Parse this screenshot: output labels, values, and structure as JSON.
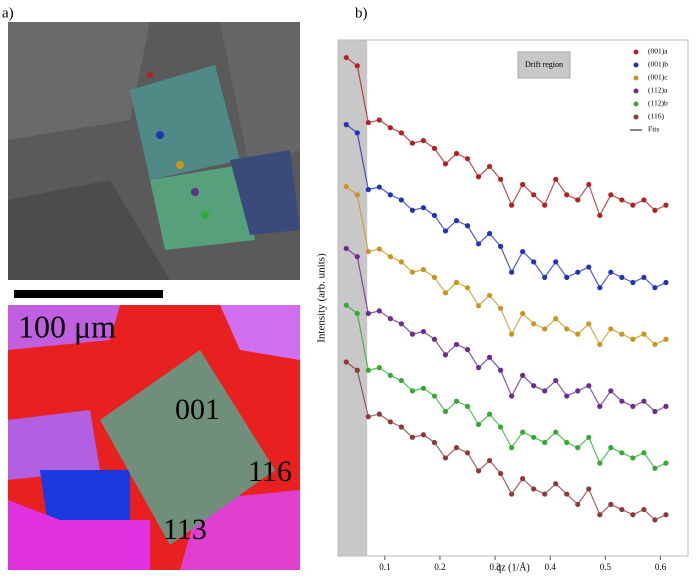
{
  "figure": {
    "panel_a_label": "a)",
    "panel_b_label": "b)",
    "scale_bar_label": "100 μm",
    "map_labels": [
      "001",
      "116",
      "113"
    ]
  },
  "chart_data": {
    "type": "scatter",
    "x_label": "qz (1/Å)",
    "y_label": "Intensity (arb. units)",
    "annotation": "Drift region",
    "shaded_xrange": [
      0.015,
      0.068
    ],
    "xlim": [
      0.015,
      0.65
    ],
    "ylim": [
      0,
      10
    ],
    "xticks": [
      0.1,
      0.2,
      0.3,
      0.4,
      0.5,
      0.6
    ],
    "x": [
      0.03,
      0.05,
      0.07,
      0.09,
      0.11,
      0.13,
      0.15,
      0.17,
      0.19,
      0.21,
      0.23,
      0.25,
      0.27,
      0.29,
      0.31,
      0.33,
      0.35,
      0.37,
      0.39,
      0.41,
      0.43,
      0.45,
      0.47,
      0.49,
      0.51,
      0.53,
      0.55,
      0.57,
      0.59,
      0.61
    ],
    "series": [
      {
        "name": "(001)a",
        "color": "#b22222",
        "values": [
          9.66,
          9.5,
          8.4,
          8.45,
          8.3,
          8.2,
          8.0,
          8.05,
          7.9,
          7.6,
          7.8,
          7.7,
          7.35,
          7.55,
          7.3,
          6.8,
          7.2,
          7.0,
          6.8,
          7.3,
          7.0,
          6.9,
          7.2,
          6.6,
          7.0,
          6.9,
          6.8,
          6.9,
          6.7,
          6.8
        ]
      },
      {
        "name": "(001)b",
        "color": "#2233bb",
        "values": [
          8.36,
          8.2,
          7.1,
          7.15,
          7.0,
          6.9,
          6.7,
          6.75,
          6.6,
          6.3,
          6.5,
          6.4,
          6.05,
          6.25,
          6.0,
          5.5,
          5.9,
          5.7,
          5.4,
          5.7,
          5.4,
          5.5,
          5.6,
          5.2,
          5.5,
          5.4,
          5.3,
          5.4,
          5.2,
          5.3
        ]
      },
      {
        "name": "(001)c",
        "color": "#c8961e",
        "values": [
          7.16,
          7.0,
          5.9,
          5.95,
          5.8,
          5.7,
          5.5,
          5.55,
          5.4,
          5.1,
          5.3,
          5.2,
          4.85,
          5.05,
          4.8,
          4.3,
          4.7,
          4.5,
          4.4,
          4.6,
          4.4,
          4.3,
          4.5,
          4.1,
          4.4,
          4.3,
          4.2,
          4.3,
          4.1,
          4.2
        ]
      },
      {
        "name": "(112)a",
        "color": "#6a2c8e",
        "values": [
          5.96,
          5.8,
          4.7,
          4.75,
          4.6,
          4.5,
          4.3,
          4.35,
          4.2,
          3.9,
          4.1,
          4.0,
          3.65,
          3.85,
          3.6,
          3.1,
          3.5,
          3.3,
          3.2,
          3.4,
          3.1,
          3.2,
          3.3,
          2.9,
          3.2,
          3.0,
          2.9,
          3.0,
          2.8,
          2.9
        ]
      },
      {
        "name": "(112)b",
        "color": "#33aa33",
        "values": [
          4.86,
          4.7,
          3.6,
          3.65,
          3.5,
          3.4,
          3.2,
          3.25,
          3.1,
          2.8,
          3.0,
          2.9,
          2.55,
          2.75,
          2.5,
          2.1,
          2.4,
          2.3,
          2.2,
          2.4,
          2.2,
          2.1,
          2.3,
          1.8,
          2.1,
          2.0,
          1.9,
          2.0,
          1.7,
          1.8
        ]
      },
      {
        "name": "(116)",
        "color": "#8b3a3a",
        "values": [
          3.76,
          3.6,
          2.7,
          2.75,
          2.6,
          2.5,
          2.3,
          2.35,
          2.2,
          1.9,
          2.1,
          2.0,
          1.65,
          1.85,
          1.6,
          1.2,
          1.5,
          1.3,
          1.2,
          1.4,
          1.2,
          1.0,
          1.3,
          0.8,
          1.0,
          0.9,
          0.8,
          0.9,
          0.7,
          0.8
        ]
      }
    ],
    "fit_legend": {
      "name": "Fits",
      "color": "#333333"
    }
  }
}
